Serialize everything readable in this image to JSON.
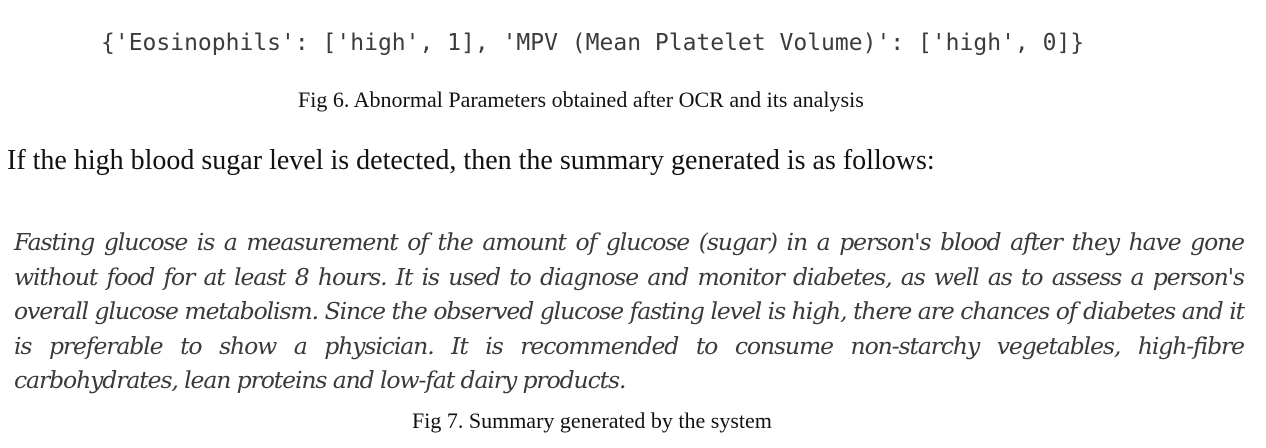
{
  "figure6": {
    "code_output": "{'Eosinophils': ['high', 1], 'MPV (Mean Platelet Volume)': ['high', 0]}",
    "caption": "Fig 6. Abnormal Parameters obtained after OCR and its analysis"
  },
  "intro_text": "If the high blood sugar level is detected, then the summary generated is as follows:",
  "figure7": {
    "summary": "Fasting glucose is a measurement of the amount of glucose (sugar) in a person's blood after they have gone without food for at least 8 hours. It is used to diagnose and monitor diabetes, as well as to assess a person's overall glucose metabolism. Since the observed glucose fasting level is high, there are chances of diabetes and it is preferable to show a physician. It is recommended to consume non-starchy vegetables, high-fibre carbohydrates, lean proteins and low-fat dairy products.",
    "caption": "Fig 7. Summary generated by the system"
  }
}
